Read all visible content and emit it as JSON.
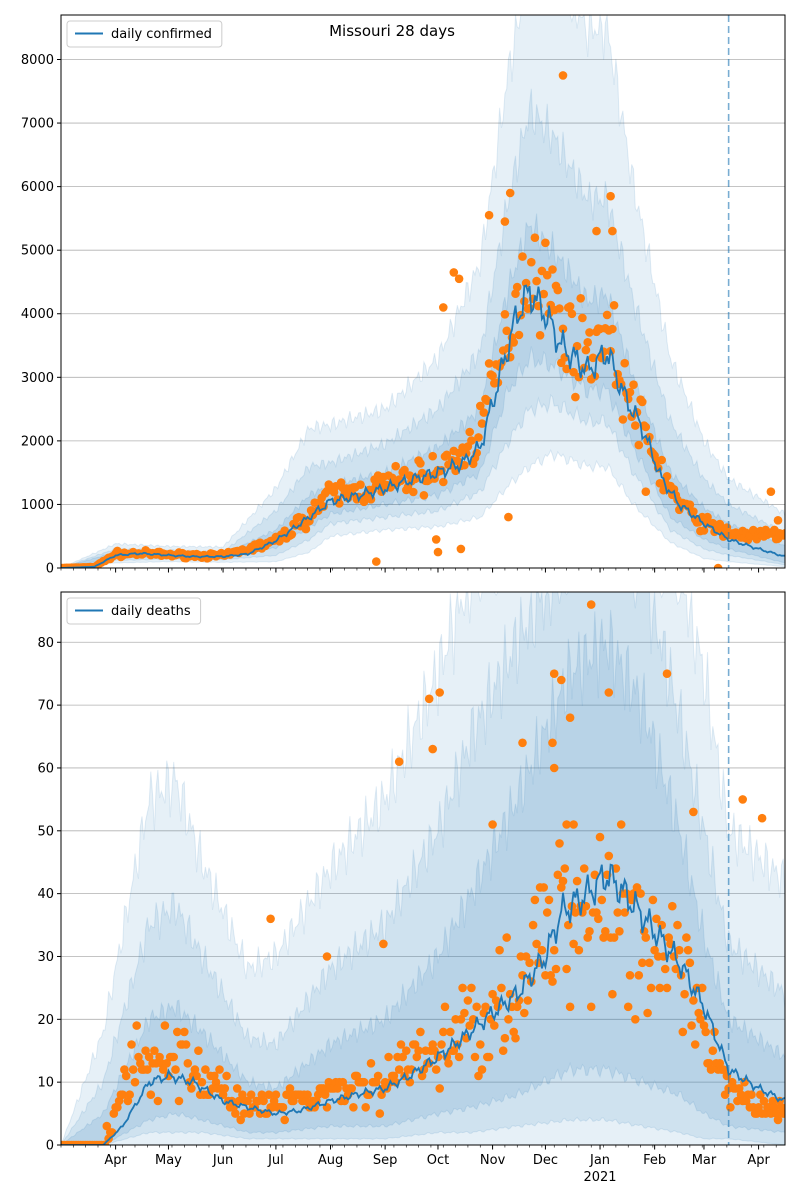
{
  "colors": {
    "model_line": "#1f77b4",
    "observed_points": "#ff7f0e",
    "band": "#1f77b4",
    "grid": "#b0b0b0",
    "forecast_marker": "#1f77b4"
  },
  "x_axis": {
    "start_date": "2020-03-01",
    "end_date": "2021-04-16",
    "forecast_date": "2021-03-15",
    "month_ticks": [
      {
        "date": "2020-04-01",
        "label": "Apr"
      },
      {
        "date": "2020-05-01",
        "label": "May"
      },
      {
        "date": "2020-06-01",
        "label": "Jun"
      },
      {
        "date": "2020-07-01",
        "label": "Jul"
      },
      {
        "date": "2020-08-01",
        "label": "Aug"
      },
      {
        "date": "2020-09-01",
        "label": "Sep"
      },
      {
        "date": "2020-10-01",
        "label": "Oct"
      },
      {
        "date": "2020-11-01",
        "label": "Nov"
      },
      {
        "date": "2020-12-01",
        "label": "Dec"
      },
      {
        "date": "2021-01-01",
        "label": "Jan"
      },
      {
        "date": "2021-02-01",
        "label": "Feb"
      },
      {
        "date": "2021-03-01",
        "label": "Mar"
      },
      {
        "date": "2021-04-01",
        "label": "Apr"
      }
    ],
    "year_label": {
      "date": "2021-01-01",
      "label": "2021"
    }
  },
  "chart_data": [
    {
      "type": "line",
      "title": "Missouri 28 days",
      "legend": {
        "label": "daily confirmed",
        "placement": "top-left"
      },
      "ylim": [
        0,
        8700
      ],
      "yticks": [
        0,
        1000,
        2000,
        3000,
        4000,
        5000,
        6000,
        7000,
        8000
      ],
      "grid": "horizontal",
      "model_knots": [
        [
          "2020-03-01",
          0
        ],
        [
          "2020-03-20",
          20
        ],
        [
          "2020-04-01",
          200
        ],
        [
          "2020-04-15",
          230
        ],
        [
          "2020-05-01",
          200
        ],
        [
          "2020-05-15",
          180
        ],
        [
          "2020-06-01",
          180
        ],
        [
          "2020-06-15",
          220
        ],
        [
          "2020-07-01",
          430
        ],
        [
          "2020-07-15",
          700
        ],
        [
          "2020-08-01",
          1050
        ],
        [
          "2020-08-15",
          1130
        ],
        [
          "2020-09-01",
          1250
        ],
        [
          "2020-09-15",
          1380
        ],
        [
          "2020-10-01",
          1500
        ],
        [
          "2020-10-15",
          1650
        ],
        [
          "2020-10-25",
          1900
        ],
        [
          "2020-11-05",
          3000
        ],
        [
          "2020-11-15",
          4000
        ],
        [
          "2020-11-22",
          4350
        ],
        [
          "2020-12-01",
          4000
        ],
        [
          "2020-12-10",
          3500
        ],
        [
          "2020-12-25",
          3100
        ],
        [
          "2021-01-05",
          3400
        ],
        [
          "2021-01-15",
          2700
        ],
        [
          "2021-01-25",
          2200
        ],
        [
          "2021-02-05",
          1400
        ],
        [
          "2021-02-15",
          1000
        ],
        [
          "2021-03-01",
          700
        ],
        [
          "2021-03-15",
          450
        ],
        [
          "2021-04-01",
          300
        ],
        [
          "2021-04-16",
          180
        ]
      ],
      "band_knots": [
        [
          "2020-03-01",
          0,
          0,
          0,
          0,
          0,
          0
        ],
        [
          "2020-04-01",
          80,
          120,
          160,
          250,
          300,
          380
        ],
        [
          "2020-05-01",
          100,
          140,
          170,
          240,
          280,
          340
        ],
        [
          "2020-06-01",
          90,
          130,
          160,
          210,
          250,
          330
        ],
        [
          "2020-07-01",
          100,
          200,
          320,
          600,
          900,
          1250
        ],
        [
          "2020-07-20",
          250,
          450,
          650,
          1150,
          1600,
          2200
        ],
        [
          "2020-08-01",
          500,
          700,
          850,
          1300,
          1650,
          2250
        ],
        [
          "2020-09-01",
          600,
          800,
          1000,
          1500,
          1950,
          2500
        ],
        [
          "2020-10-01",
          650,
          900,
          1150,
          1900,
          2500,
          3300
        ],
        [
          "2020-10-25",
          800,
          1200,
          1500,
          2500,
          3400,
          4800
        ],
        [
          "2020-11-10",
          1300,
          2000,
          2800,
          4400,
          5800,
          7800
        ],
        [
          "2020-11-22",
          1600,
          2500,
          3300,
          5400,
          7200,
          9500
        ],
        [
          "2020-12-05",
          1800,
          2600,
          3200,
          5000,
          6800,
          9500
        ],
        [
          "2020-12-25",
          1600,
          2300,
          2800,
          4200,
          5800,
          8500
        ],
        [
          "2021-01-05",
          1600,
          2300,
          2800,
          4300,
          5800,
          8500
        ],
        [
          "2021-01-20",
          1000,
          1500,
          1900,
          3000,
          4200,
          6000
        ],
        [
          "2021-02-10",
          400,
          600,
          800,
          1500,
          2300,
          3300
        ],
        [
          "2021-03-01",
          150,
          300,
          450,
          950,
          1400,
          2000
        ],
        [
          "2021-03-15",
          100,
          200,
          300,
          700,
          1000,
          1400
        ],
        [
          "2021-04-16",
          20,
          50,
          80,
          350,
          550,
          850
        ]
      ],
      "observed_knots": [
        [
          "2020-03-01",
          0
        ],
        [
          "2020-03-20",
          15
        ],
        [
          "2020-04-01",
          220
        ],
        [
          "2020-04-15",
          230
        ],
        [
          "2020-05-01",
          210
        ],
        [
          "2020-06-01",
          190
        ],
        [
          "2020-07-01",
          420
        ],
        [
          "2020-07-15",
          720
        ],
        [
          "2020-08-01",
          1150
        ],
        [
          "2020-08-15",
          1200
        ],
        [
          "2020-09-01",
          1300
        ],
        [
          "2020-09-15",
          1400
        ],
        [
          "2020-10-01",
          1500
        ],
        [
          "2020-10-20",
          1900
        ],
        [
          "2020-11-05",
          3100
        ],
        [
          "2020-11-15",
          4300
        ],
        [
          "2020-11-25",
          4800
        ],
        [
          "2020-12-05",
          4200
        ],
        [
          "2020-12-15",
          3600
        ],
        [
          "2020-12-25",
          3400
        ],
        [
          "2021-01-05",
          3800
        ],
        [
          "2021-01-15",
          2800
        ],
        [
          "2021-01-25",
          2200
        ],
        [
          "2021-02-05",
          1500
        ],
        [
          "2021-02-15",
          1000
        ],
        [
          "2021-03-01",
          700
        ],
        [
          "2021-03-15",
          550
        ],
        [
          "2021-04-01",
          500
        ],
        [
          "2021-04-16",
          550
        ]
      ],
      "observed_noise": 0.28,
      "observed_outliers": [
        [
          "2020-08-27",
          100
        ],
        [
          "2020-09-30",
          450
        ],
        [
          "2020-10-01",
          250
        ],
        [
          "2020-10-04",
          4100
        ],
        [
          "2020-10-10",
          4650
        ],
        [
          "2020-10-13",
          4550
        ],
        [
          "2020-10-14",
          300
        ],
        [
          "2020-10-30",
          5550
        ],
        [
          "2020-11-08",
          5450
        ],
        [
          "2020-11-10",
          800
        ],
        [
          "2020-11-11",
          5900
        ],
        [
          "2020-12-11",
          7750
        ],
        [
          "2020-12-30",
          5300
        ],
        [
          "2021-01-07",
          5850
        ],
        [
          "2021-01-08",
          5300
        ],
        [
          "2021-01-27",
          1200
        ],
        [
          "2021-03-09",
          0
        ],
        [
          "2021-04-08",
          1200
        ],
        [
          "2021-04-12",
          750
        ]
      ]
    },
    {
      "type": "line",
      "legend": {
        "label": "daily deaths",
        "placement": "top-left"
      },
      "ylim": [
        0,
        88
      ],
      "yticks": [
        0,
        10,
        20,
        30,
        40,
        50,
        60,
        70,
        80
      ],
      "grid": "horizontal",
      "model_knots": [
        [
          "2020-03-01",
          0
        ],
        [
          "2020-03-10",
          0
        ],
        [
          "2020-03-25",
          0
        ],
        [
          "2020-04-05",
          3
        ],
        [
          "2020-04-20",
          10
        ],
        [
          "2020-05-01",
          11
        ],
        [
          "2020-05-15",
          10
        ],
        [
          "2020-06-01",
          7
        ],
        [
          "2020-06-15",
          6
        ],
        [
          "2020-07-01",
          5
        ],
        [
          "2020-07-15",
          5.5
        ],
        [
          "2020-08-01",
          7
        ],
        [
          "2020-08-15",
          8
        ],
        [
          "2020-09-01",
          9
        ],
        [
          "2020-09-15",
          11
        ],
        [
          "2020-10-01",
          14
        ],
        [
          "2020-10-15",
          17
        ],
        [
          "2020-11-01",
          21
        ],
        [
          "2020-11-15",
          24
        ],
        [
          "2020-12-01",
          30
        ],
        [
          "2020-12-10",
          37
        ],
        [
          "2020-12-25",
          40
        ],
        [
          "2021-01-05",
          43
        ],
        [
          "2021-01-15",
          40
        ],
        [
          "2021-02-01",
          34
        ],
        [
          "2021-02-15",
          29
        ],
        [
          "2021-03-01",
          22
        ],
        [
          "2021-03-15",
          12
        ],
        [
          "2021-04-01",
          9
        ],
        [
          "2021-04-16",
          7
        ]
      ],
      "band_knots": [
        [
          "2020-03-01",
          0,
          0,
          0,
          0,
          0,
          0
        ],
        [
          "2020-03-25",
          0,
          0,
          0,
          5,
          10,
          18
        ],
        [
          "2020-04-20",
          0,
          2,
          4,
          20,
          35,
          55
        ],
        [
          "2020-05-05",
          0,
          2,
          5,
          22,
          38,
          58
        ],
        [
          "2020-05-20",
          0,
          2,
          4,
          18,
          30,
          45
        ],
        [
          "2020-06-15",
          0,
          1,
          2,
          10,
          17,
          28
        ],
        [
          "2020-07-01",
          0,
          1,
          2,
          9,
          16,
          30
        ],
        [
          "2020-08-01",
          0,
          1,
          3,
          16,
          28,
          44
        ],
        [
          "2020-09-01",
          0,
          1,
          3,
          20,
          35,
          55
        ],
        [
          "2020-10-01",
          0,
          2,
          5,
          30,
          50,
          75
        ],
        [
          "2020-10-20",
          0,
          2,
          6,
          40,
          65,
          92
        ],
        [
          "2020-11-15",
          0,
          3,
          8,
          55,
          80,
          100
        ],
        [
          "2020-12-15",
          0,
          4,
          12,
          75,
          95,
          100
        ],
        [
          "2021-01-05",
          0,
          4,
          12,
          80,
          100,
          100
        ],
        [
          "2021-01-25",
          0,
          3,
          10,
          70,
          92,
          100
        ],
        [
          "2021-02-15",
          0,
          2,
          8,
          50,
          68,
          92
        ],
        [
          "2021-03-01",
          0,
          1,
          5,
          33,
          50,
          75
        ],
        [
          "2021-03-15",
          0,
          1,
          3,
          20,
          32,
          50
        ],
        [
          "2021-04-16",
          0,
          0,
          2,
          14,
          24,
          42
        ]
      ],
      "observed_knots": [
        [
          "2020-03-01",
          0
        ],
        [
          "2020-03-25",
          0
        ],
        [
          "2020-04-01",
          5
        ],
        [
          "2020-04-15",
          14
        ],
        [
          "2020-05-01",
          15
        ],
        [
          "2020-05-15",
          12
        ],
        [
          "2020-06-01",
          8
        ],
        [
          "2020-06-15",
          6
        ],
        [
          "2020-07-01",
          6
        ],
        [
          "2020-08-01",
          8
        ],
        [
          "2020-09-01",
          10
        ],
        [
          "2020-10-01",
          15
        ],
        [
          "2020-10-15",
          18
        ],
        [
          "2020-11-01",
          22
        ],
        [
          "2020-11-15",
          25
        ],
        [
          "2020-12-01",
          32
        ],
        [
          "2020-12-15",
          38
        ],
        [
          "2021-01-05",
          40
        ],
        [
          "2021-01-20",
          35
        ],
        [
          "2021-02-05",
          30
        ],
        [
          "2021-02-20",
          24
        ],
        [
          "2021-03-05",
          14
        ],
        [
          "2021-03-15",
          8
        ],
        [
          "2021-04-01",
          7
        ],
        [
          "2021-04-16",
          5
        ]
      ],
      "observed_noise": 0.6,
      "observed_outliers": [
        [
          "2020-06-28",
          36
        ],
        [
          "2020-07-30",
          30
        ],
        [
          "2020-08-31",
          32
        ],
        [
          "2020-09-09",
          61
        ],
        [
          "2020-09-26",
          71
        ],
        [
          "2020-09-28",
          63
        ],
        [
          "2020-10-02",
          72
        ],
        [
          "2020-11-18",
          64
        ],
        [
          "2020-12-06",
          75
        ],
        [
          "2020-12-10",
          74
        ],
        [
          "2020-12-15",
          68
        ],
        [
          "2020-12-05",
          64
        ],
        [
          "2020-12-06",
          60
        ],
        [
          "2020-11-01",
          51
        ],
        [
          "2020-12-13",
          51
        ],
        [
          "2020-12-17",
          51
        ],
        [
          "2020-12-27",
          86
        ],
        [
          "2021-01-06",
          72
        ],
        [
          "2021-02-08",
          75
        ],
        [
          "2021-02-23",
          53
        ],
        [
          "2021-03-23",
          55
        ],
        [
          "2021-04-03",
          52
        ]
      ]
    }
  ]
}
